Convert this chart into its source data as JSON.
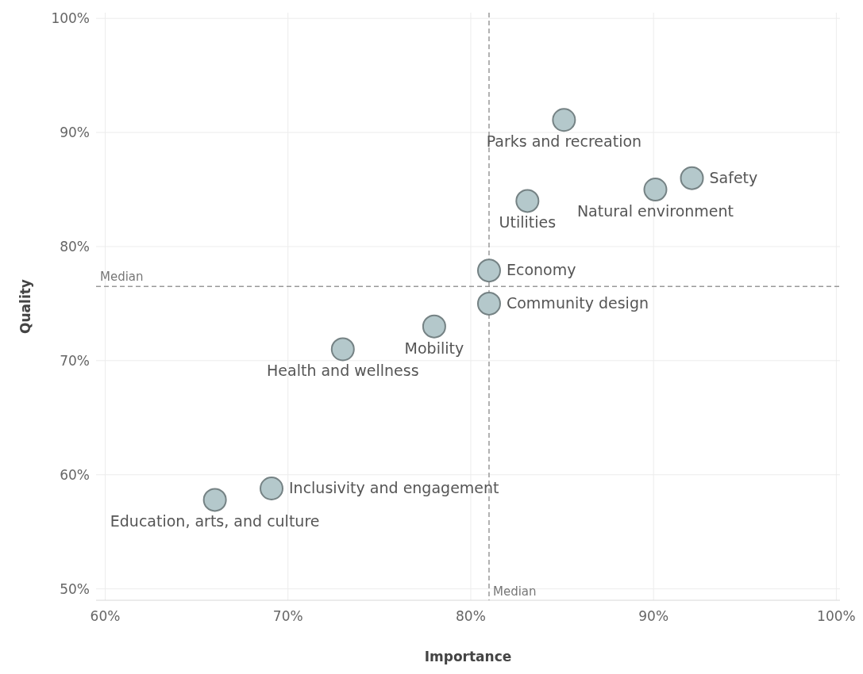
{
  "chart_data": {
    "type": "scatter",
    "xlabel": "Importance",
    "ylabel": "Quality",
    "xlim": [
      59.5,
      100.2
    ],
    "ylim": [
      49,
      100.5
    ],
    "xticks": [
      {
        "value": 60,
        "label": "60%"
      },
      {
        "value": 70,
        "label": "70%"
      },
      {
        "value": 80,
        "label": "80%"
      },
      {
        "value": 90,
        "label": "90%"
      },
      {
        "value": 100,
        "label": "100%"
      }
    ],
    "yticks": [
      {
        "value": 50,
        "label": "50%"
      },
      {
        "value": 60,
        "label": "60%"
      },
      {
        "value": 70,
        "label": "70%"
      },
      {
        "value": 80,
        "label": "80%"
      },
      {
        "value": 90,
        "label": "90%"
      },
      {
        "value": 100,
        "label": "100%"
      }
    ],
    "grid": true,
    "marker": "circle",
    "series": [
      {
        "name": "Parks and recreation",
        "color": "#b4c8cb",
        "x": [
          85.1
        ],
        "values": [
          91.1
        ]
      },
      {
        "name": "Safety",
        "color": "#b4c8cb",
        "x": [
          92.1
        ],
        "values": [
          86.0
        ]
      },
      {
        "name": "Natural environment",
        "color": "#b4c8cb",
        "x": [
          90.1
        ],
        "values": [
          85.0
        ]
      },
      {
        "name": "Utilities",
        "color": "#b4c8cb",
        "x": [
          83.1
        ],
        "values": [
          84.0
        ]
      },
      {
        "name": "Economy",
        "color": "#b4c8cb",
        "x": [
          81.0
        ],
        "values": [
          77.9
        ]
      },
      {
        "name": "Community design",
        "color": "#b4c8cb",
        "x": [
          81.0
        ],
        "values": [
          75.0
        ]
      },
      {
        "name": "Mobility",
        "color": "#b4c8cb",
        "x": [
          78.0
        ],
        "values": [
          73.0
        ]
      },
      {
        "name": "Health and wellness",
        "color": "#b4c8cb",
        "x": [
          73.0
        ],
        "values": [
          71.0
        ]
      },
      {
        "name": "Inclusivity and engagement",
        "color": "#b4c8cb",
        "x": [
          69.1
        ],
        "values": [
          58.8
        ]
      },
      {
        "name": "Education, arts, and culture",
        "color": "#b4c8cb",
        "x": [
          66.0
        ],
        "values": [
          57.8
        ]
      }
    ],
    "ref_lines": [
      {
        "axis": "x",
        "value": 81,
        "label": "Median",
        "line_style": "dashed",
        "color": "#999999"
      },
      {
        "axis": "y",
        "value": 76.5,
        "label": "Median",
        "line_style": "dashed",
        "color": "#999999"
      }
    ]
  }
}
